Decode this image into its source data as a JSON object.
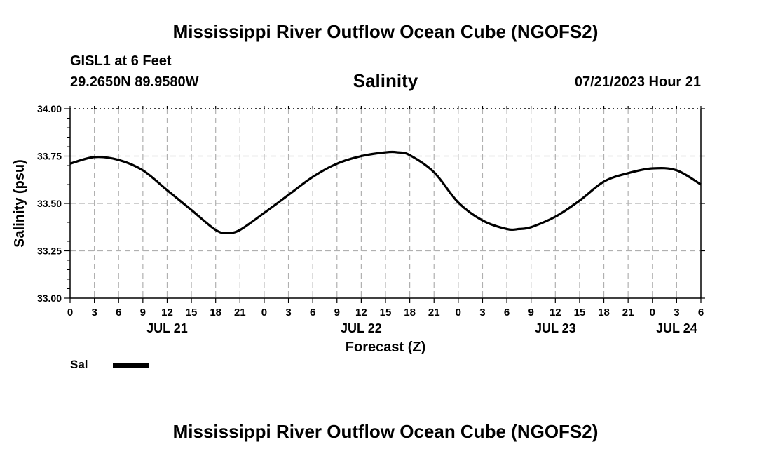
{
  "header": {
    "title": "Mississippi River Outflow Ocean Cube (NGOFS2)",
    "station": "GISL1 at 6 Feet",
    "coords": "29.2650N  89.9580W",
    "variable": "Salinity",
    "datetime": "07/21/2023 Hour 21"
  },
  "legend": {
    "label": "Sal",
    "color": "#000000"
  },
  "footer": {
    "title": "Mississippi River Outflow Ocean Cube (NGOFS2)"
  },
  "colors": {
    "line": "#000000",
    "grid": "#b0b0b0",
    "axis": "#000000"
  },
  "chart_data": {
    "type": "line",
    "title": "Salinity",
    "xlabel": "Forecast (Z)",
    "ylabel": "Salinity (psu)",
    "ylim": [
      33.0,
      34.0
    ],
    "yticks": [
      "33.00",
      "33.25",
      "33.50",
      "33.75",
      "34.00"
    ],
    "xlim": [
      0,
      78
    ],
    "xtick_labels": [
      "0",
      "3",
      "6",
      "9",
      "12",
      "15",
      "18",
      "21",
      "0",
      "3",
      "6",
      "9",
      "12",
      "15",
      "18",
      "21",
      "0",
      "3",
      "6",
      "9",
      "12",
      "15",
      "18",
      "21",
      "0",
      "3",
      "6"
    ],
    "date_labels": [
      {
        "label": "JUL 21",
        "hour": 12
      },
      {
        "label": "JUL 22",
        "hour": 36
      },
      {
        "label": "JUL 23",
        "hour": 60
      },
      {
        "label": "JUL 24",
        "hour": 75
      }
    ],
    "grid": true,
    "series": [
      {
        "name": "Sal",
        "x": [
          0,
          3,
          6,
          9,
          12,
          15,
          18,
          19.5,
          21,
          24,
          27,
          30,
          33,
          36,
          39,
          40.5,
          42,
          45,
          48,
          51,
          54,
          55.5,
          57,
          60,
          63,
          66,
          69,
          72,
          75,
          78
        ],
        "values": [
          33.71,
          33.745,
          33.73,
          33.675,
          33.57,
          33.465,
          33.36,
          33.345,
          33.36,
          33.45,
          33.545,
          33.64,
          33.71,
          33.75,
          33.77,
          33.77,
          33.755,
          33.665,
          33.505,
          33.41,
          33.365,
          33.365,
          33.375,
          33.43,
          33.515,
          33.615,
          33.66,
          33.685,
          33.675,
          33.6
        ]
      }
    ]
  }
}
